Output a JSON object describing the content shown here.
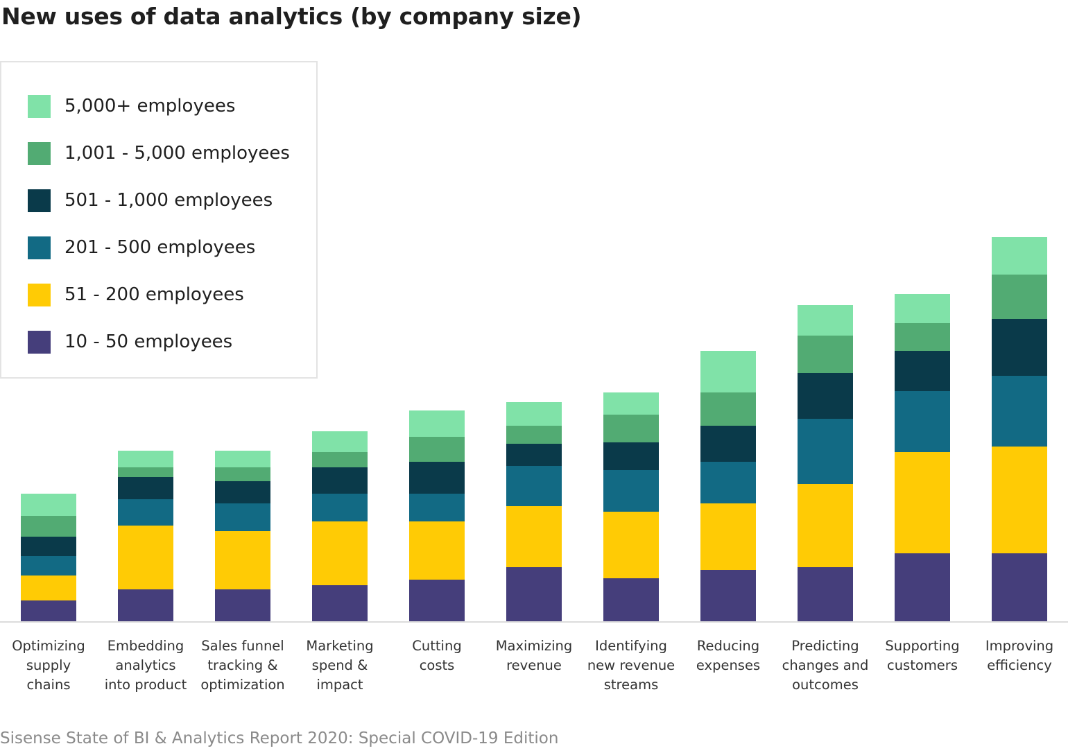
{
  "chart_data": {
    "type": "bar",
    "stacked": true,
    "title": "New uses of data analytics (by company size)",
    "source": "Sisense State of BI & Analytics Report 2020: Special COVID-19 Edition",
    "legend_position": "top-left",
    "y_axis_visible": false,
    "gridlines": false,
    "categories": [
      [
        "Optimizing",
        "supply",
        "chains"
      ],
      [
        "Embedding",
        "analytics",
        "into product"
      ],
      [
        "Sales funnel",
        "tracking &",
        "optimization"
      ],
      [
        "Marketing",
        "spend &",
        "impact"
      ],
      [
        "Cutting",
        "costs"
      ],
      [
        "Maximizing",
        "revenue"
      ],
      [
        "Identifying",
        "new revenue",
        "streams"
      ],
      [
        "Reducing",
        "expenses"
      ],
      [
        "Predicting",
        "changes and",
        "outcomes"
      ],
      [
        "Supporting",
        "customers"
      ],
      [
        "Improving",
        "efficiency"
      ]
    ],
    "series": [
      {
        "name": "10 - 50 employees",
        "color": "#453e7b",
        "values": [
          15,
          23,
          23,
          26,
          30,
          39,
          31,
          37,
          39,
          49,
          49
        ]
      },
      {
        "name": "51 - 200 employees",
        "color": "#ffcb05",
        "values": [
          18,
          46,
          42,
          46,
          42,
          44,
          48,
          48,
          60,
          73,
          77
        ]
      },
      {
        "name": "201 - 500 employees",
        "color": "#126a84",
        "values": [
          14,
          19,
          20,
          20,
          20,
          29,
          30,
          30,
          47,
          44,
          51
        ]
      },
      {
        "name": "501 - 1,000 employees",
        "color": "#0a3a4a",
        "values": [
          14,
          16,
          16,
          19,
          23,
          16,
          20,
          26,
          33,
          29,
          41
        ]
      },
      {
        "name": "1,001 - 5,000 employees",
        "color": "#52ab73",
        "values": [
          15,
          7,
          10,
          11,
          18,
          13,
          20,
          24,
          27,
          20,
          32
        ]
      },
      {
        "name": "5,000+ employees",
        "color": "#80e2a8",
        "values": [
          16,
          12,
          12,
          15,
          19,
          17,
          16,
          30,
          22,
          21,
          27
        ]
      }
    ]
  }
}
